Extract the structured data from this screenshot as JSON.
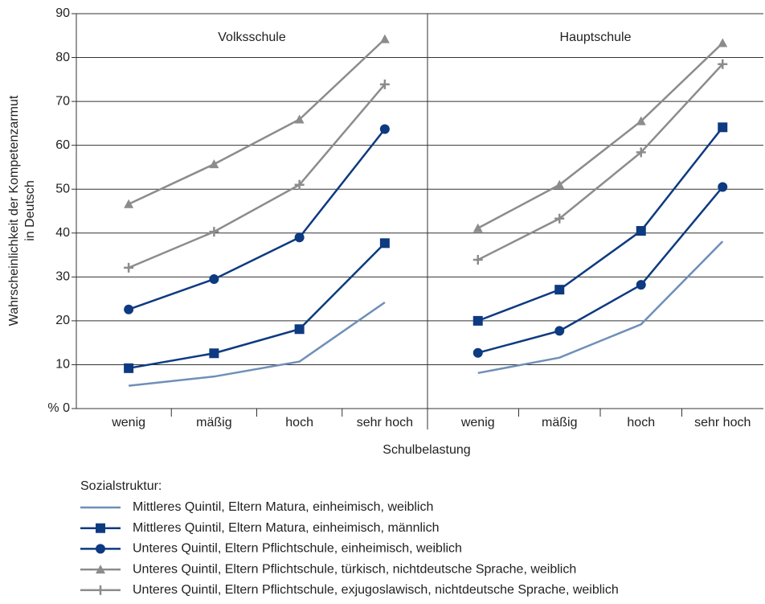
{
  "chart_data": {
    "type": "line",
    "ylabel": [
      "Wahrscheinlichkeit der Kompetenzarmut",
      "in Deutsch"
    ],
    "xlabel": "Schulbelastung",
    "legend_title": "Sozialstruktur:",
    "categories": [
      "wenig",
      "mäßig",
      "hoch",
      "sehr hoch"
    ],
    "ylim": [
      0,
      90
    ],
    "yticks": [
      {
        "value": 0,
        "label": "% 0"
      },
      10,
      20,
      30,
      40,
      50,
      60,
      70,
      80,
      90
    ],
    "grid": true,
    "series": [
      {
        "name": "Mittleres Quintil, Eltern Matura, einheimisch, weiblich",
        "color": "#6f8fb8",
        "marker": "none"
      },
      {
        "name": "Mittleres Quintil, Eltern Matura, einheimisch, männlich",
        "color": "#0d3a80",
        "marker": "square"
      },
      {
        "name": "Unteres Quintil, Eltern Pflichtschule, einheimisch, weiblich",
        "color": "#0d3a80",
        "marker": "circle"
      },
      {
        "name": "Unteres Quintil, Eltern Pflichtschule, türkisch, nichtdeutsche Sprache, weiblich",
        "color": "#8c8c8c",
        "marker": "triangle"
      },
      {
        "name": "Unteres Quintil, Eltern Pflichtschule, exjugoslawisch, nichtdeutsche Sprache, weiblich",
        "color": "#8c8c8c",
        "marker": "plus"
      }
    ],
    "panels": [
      {
        "title": "Volksschule",
        "values": [
          [
            5.2,
            7.3,
            10.7,
            24.2
          ],
          [
            9.2,
            12.6,
            18.1,
            37.7
          ],
          [
            22.6,
            29.5,
            39.0,
            63.7
          ],
          [
            46.6,
            55.7,
            65.9,
            84.2
          ],
          [
            32.1,
            40.3,
            51.0,
            73.9
          ]
        ]
      },
      {
        "title": "Hauptschule",
        "values": [
          [
            8.1,
            11.6,
            19.2,
            38.1
          ],
          [
            20.0,
            27.1,
            40.5,
            64.1
          ],
          [
            12.7,
            17.7,
            28.2,
            50.5
          ],
          [
            41.1,
            51.0,
            65.5,
            83.3
          ],
          [
            33.9,
            43.3,
            58.4,
            78.5
          ]
        ]
      }
    ]
  }
}
